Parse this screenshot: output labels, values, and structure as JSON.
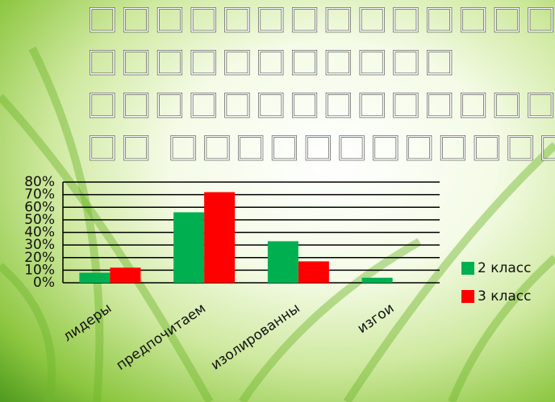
{
  "title_lines": [
    "□□□□□□□□□□□□□□",
    "□□□□□□□□□□□",
    "□□□□□□□□□□□□□□□□□",
    "□□ □□□□□□□□□□□□□"
  ],
  "chart_data": {
    "type": "bar",
    "categories": [
      "лидеры",
      "предпочитаем",
      "изолированны",
      "изгои"
    ],
    "series": [
      {
        "name": "2 класс",
        "color": "#00b050",
        "values": [
          8,
          56,
          33,
          4
        ]
      },
      {
        "name": "3 класс",
        "color": "#ff0000",
        "values": [
          12,
          72,
          17,
          0
        ]
      }
    ],
    "ylim": [
      0,
      80
    ],
    "yticks": [
      {
        "value": 0,
        "label": "0%"
      },
      {
        "value": 10,
        "label": "10%"
      },
      {
        "value": 20,
        "label": "20%"
      },
      {
        "value": 30,
        "label": "30%"
      },
      {
        "value": 40,
        "label": "40%"
      },
      {
        "value": 50,
        "label": "50%"
      },
      {
        "value": 60,
        "label": "60%"
      },
      {
        "value": 70,
        "label": "70%"
      },
      {
        "value": 80,
        "label": "80%"
      }
    ],
    "grid": true,
    "legend": "right"
  }
}
